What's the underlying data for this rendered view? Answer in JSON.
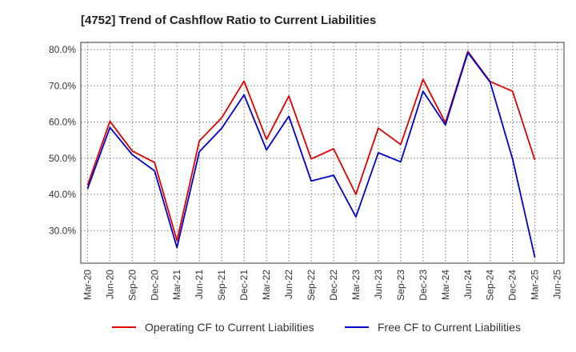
{
  "chart_data": {
    "type": "line",
    "title": "[4752]  Trend of Cashflow Ratio to Current Liabilities",
    "xlabel": "",
    "ylabel": "",
    "x_ticks": [
      "Mar-20",
      "Jun-20",
      "Sep-20",
      "Dec-20",
      "Mar-21",
      "Jun-21",
      "Sep-21",
      "Dec-21",
      "Mar-22",
      "Jun-22",
      "Sep-22",
      "Dec-22",
      "Mar-23",
      "Jun-23",
      "Sep-23",
      "Dec-23",
      "Mar-24",
      "Jun-24",
      "Sep-24",
      "Dec-24",
      "Mar-25",
      "Jun-25"
    ],
    "y_ticks": [
      "30.0%",
      "40.0%",
      "50.0%",
      "60.0%",
      "70.0%",
      "80.0%"
    ],
    "y_tick_values": [
      30,
      40,
      50,
      60,
      70,
      80
    ],
    "ylim": [
      21.0,
      82.0
    ],
    "grid": true,
    "legend_position": "bottom",
    "series": [
      {
        "name": "Operating CF to Current Liabilities",
        "color": "#e00000",
        "values": [
          42.5,
          60.2,
          52.0,
          48.8,
          27.2,
          54.8,
          61.2,
          71.3,
          55.2,
          67.2,
          49.8,
          52.6,
          40.0,
          58.3,
          53.8,
          71.8,
          59.8,
          79.5,
          71.2,
          68.5,
          49.5,
          null
        ]
      },
      {
        "name": "Free CF to Current Liabilities",
        "color": "#0000cc",
        "values": [
          41.5,
          58.5,
          51.0,
          46.5,
          25.3,
          51.8,
          58.3,
          67.5,
          52.3,
          61.6,
          43.7,
          45.3,
          33.8,
          51.5,
          49.0,
          68.5,
          59.2,
          79.2,
          71.0,
          49.8,
          22.6,
          null
        ]
      }
    ]
  }
}
